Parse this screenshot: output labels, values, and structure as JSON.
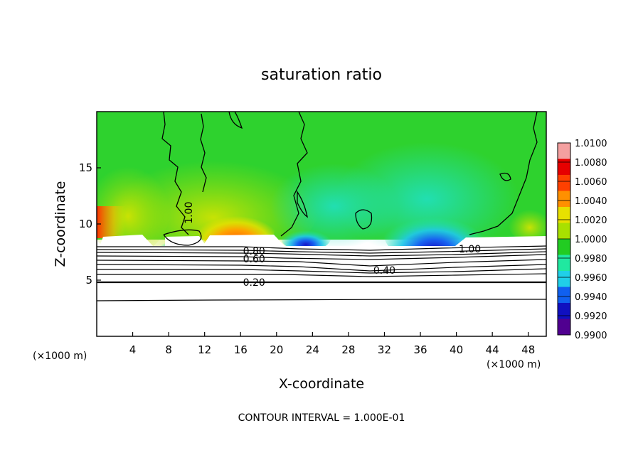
{
  "chart_data": {
    "type": "heatmap",
    "title": "saturation ratio",
    "xlabel": "X-coordinate",
    "ylabel": "Z-coordinate",
    "x_unit_left": "(×1000 m)",
    "x_unit_right": "(×1000 m)",
    "xlim": [
      0,
      50
    ],
    "ylim": [
      0,
      20
    ],
    "x_ticks": [
      "4",
      "8",
      "12",
      "16",
      "20",
      "24",
      "28",
      "32",
      "36",
      "40",
      "44",
      "48"
    ],
    "y_ticks": [
      "5",
      "10",
      "15"
    ],
    "colorbar": {
      "levels": [
        "1.0100",
        "1.0080",
        "1.0060",
        "1.0040",
        "1.0020",
        "1.0000",
        "0.9980",
        "0.9960",
        "0.9940",
        "0.9920",
        "0.9900"
      ],
      "colors": [
        "#f4a0a0",
        "#e60000",
        "#ff4000",
        "#ff9000",
        "#e8e000",
        "#a8e000",
        "#22cc22",
        "#20e8a0",
        "#20d0e8",
        "#1060f0",
        "#1010c0",
        "#500090"
      ]
    },
    "contour_labels": [
      {
        "text": "1.00",
        "x": 10.2,
        "z": 11.0
      },
      {
        "text": "1.00",
        "x": 41.5,
        "z": 7.8
      },
      {
        "text": "0.60",
        "x": 17.5,
        "z": 6.9
      },
      {
        "text": "0.80",
        "x": 17.5,
        "z": 7.6
      },
      {
        "text": "0.40",
        "x": 32.0,
        "z": 5.9
      },
      {
        "text": "0.20",
        "x": 17.5,
        "z": 4.8
      }
    ],
    "footer": "CONTOUR INTERVAL = 1.000E-01"
  }
}
